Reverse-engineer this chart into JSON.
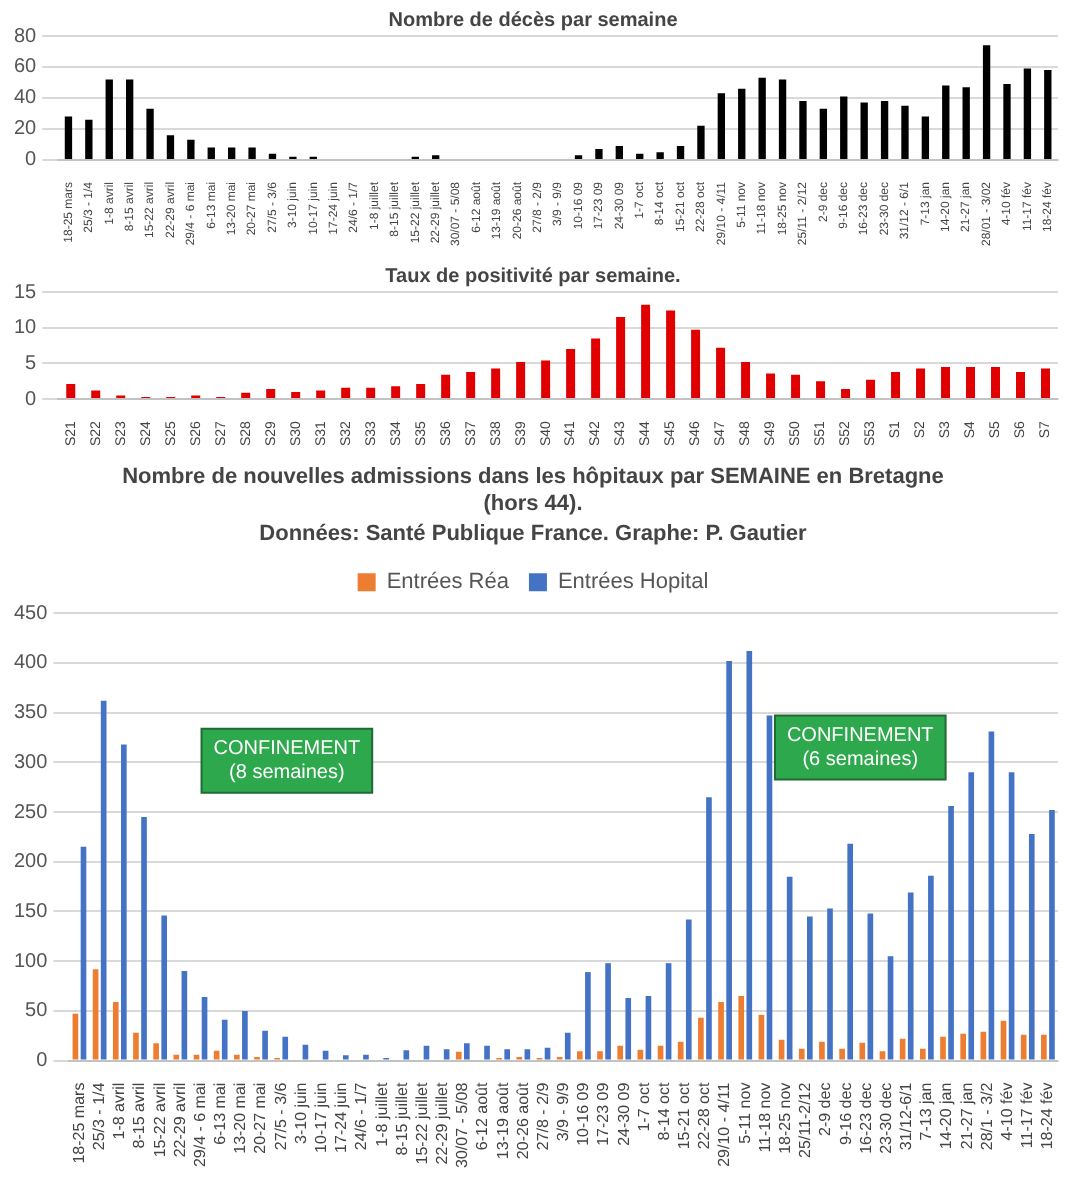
{
  "chart_data": [
    {
      "type": "bar",
      "title": "Nombre de décès par semaine",
      "categories": [
        "18-25 mars",
        "25/3 - 1/4",
        "1-8 avril",
        "8-15 avril",
        "15-22 avril",
        "22-29 avril",
        "29/4 - 6 mai",
        "6-13 mai",
        "13-20 mai",
        "20-27 mai",
        "27/5 - 3/6",
        "3-10 juin",
        "10-17 juin",
        "17-24 juin",
        "24/6 - 1/7",
        "1-8 juillet",
        "8-15 juillet",
        "15-22 juillet",
        "22-29 juillet",
        "30/07 - 5/08",
        "6-12 août",
        "13-19 août",
        "20-26 août",
        "27/8 - 2/9",
        "3/9 - 9/9",
        "10-16 09",
        "17-23 09",
        "24-30 09",
        "1-7 oct",
        "8-14 oct",
        "15-21 oct",
        "22-28 oct",
        "29/10 - 4/11",
        "5-11 nov",
        "11-18 nov",
        "18-25 nov",
        "25/11 - 2/12",
        "2-9 dec",
        "9-16 dec",
        "16-23 dec",
        "23-30 dec",
        "31/12 - 6/1",
        "7-13 jan",
        "14-20 jan",
        "21-27 jan",
        "28/01 - 3/02",
        "4-10 fév",
        "11-17 fév",
        "18-24 fév"
      ],
      "values": [
        28,
        26,
        52,
        52,
        33,
        16,
        13,
        8,
        8,
        8,
        4,
        2,
        2,
        0,
        0,
        0,
        0,
        2,
        3,
        0,
        0,
        0,
        0,
        0,
        0,
        3,
        7,
        9,
        4,
        5,
        9,
        22,
        43,
        46,
        53,
        52,
        38,
        33,
        41,
        37,
        38,
        35,
        28,
        48,
        47,
        74,
        49,
        59,
        58
      ],
      "color": "#000000",
      "ylim": [
        0,
        80
      ],
      "yticks": [
        0,
        20,
        40,
        60,
        80
      ],
      "grid": "y"
    },
    {
      "type": "bar",
      "title": "Taux de positivité par semaine.",
      "categories": [
        "S21",
        "S22",
        "S23",
        "S24",
        "S25",
        "S26",
        "S27",
        "S28",
        "S29",
        "S30",
        "S31",
        "S32",
        "S33",
        "S34",
        "S35",
        "S36",
        "S37",
        "S38",
        "S39",
        "S40",
        "S41",
        "S42",
        "S43",
        "S44",
        "S45",
        "S46",
        "S47",
        "S48",
        "S49",
        "S50",
        "S51",
        "S52",
        "S53",
        "S1",
        "S2",
        "S3",
        "S4",
        "S5",
        "S6",
        "S7"
      ],
      "values": [
        2.1,
        1.2,
        0.5,
        0.3,
        0.3,
        0.5,
        0.3,
        0.9,
        1.4,
        1.0,
        1.2,
        1.6,
        1.6,
        1.8,
        2.1,
        3.4,
        3.8,
        4.3,
        5.2,
        5.4,
        7.0,
        8.5,
        11.5,
        13.2,
        12.4,
        9.7,
        7.2,
        5.2,
        3.6,
        3.4,
        2.5,
        1.4,
        2.7,
        3.8,
        4.3,
        4.5,
        4.5,
        4.5,
        3.8,
        4.3
      ],
      "color": "#e00000",
      "ylim": [
        0,
        15
      ],
      "yticks": [
        0,
        5,
        10,
        15
      ],
      "grid": "y"
    },
    {
      "type": "bar",
      "title": "Nombre de nouvelles admissions dans les hôpitaux par SEMAINE en Bretagne (hors 44).",
      "subtitle": "Données: Santé Publique France. Graphe: P. Gautier",
      "categories": [
        "18-25 mars",
        "25/3 - 1/4",
        "1-8 avril",
        "8-15 avril",
        "15-22 avril",
        "22-29 avril",
        "29/4 - 6 mai",
        "6-13 mai",
        "13-20 mai",
        "20-27 mai",
        "27/5 - 3/6",
        "3-10 juin",
        "10-17 juin",
        "17-24 juin",
        "24/6 - 1/7",
        "1-8 juillet",
        "8-15 juillet",
        "15-22 juillet",
        "22-29 juillet",
        "30/07 - 5/08",
        "6-12 août",
        "13-19 août",
        "20-26 août",
        "27/8 - 2/9",
        "3/9 - 9/9",
        "10-16 09",
        "17-23 09",
        "24-30 09",
        "1-7 oct",
        "8-14 oct",
        "15-21 oct",
        "22-28 oct",
        "29/10 - 4/11",
        "5-11 nov",
        "11-18 nov",
        "18-25 nov",
        "25/11-2/12",
        "2-9 dec",
        "9-16 dec",
        "16-23 dec",
        "23-30 dec",
        "31/12-6/1",
        "7-13 jan",
        "14-20 jan",
        "21-27 jan",
        "28/1 - 3/2",
        "4-10 fév",
        "11-17 fév",
        "18-24 fév"
      ],
      "series": [
        {
          "name": "Entrées Réa",
          "color": "#ed7d31",
          "values": [
            47,
            92,
            59,
            28,
            17.5,
            6,
            6,
            10,
            6,
            3.5,
            2.5,
            0,
            1,
            0,
            0,
            0,
            1,
            1,
            0,
            9,
            1,
            2.5,
            3.5,
            2.5,
            3.5,
            9.5,
            9.5,
            15,
            11,
            15,
            19,
            43,
            59,
            65,
            46,
            21,
            12,
            19,
            12,
            18,
            9.5,
            22,
            12,
            24,
            27,
            29,
            40,
            26,
            26
          ]
        },
        {
          "name": "Entrées Hopital",
          "color": "#4472c4",
          "values": [
            215,
            362,
            318,
            245,
            146,
            90,
            64,
            41,
            50,
            30,
            24,
            16,
            10,
            5.5,
            6,
            2.5,
            10.5,
            15,
            11.5,
            17.5,
            15,
            11.5,
            11.5,
            13,
            28,
            89,
            98,
            63,
            65,
            98,
            142,
            265,
            402,
            412,
            347,
            185,
            145,
            153,
            218,
            148,
            105,
            169,
            186,
            256,
            290,
            331,
            290,
            228,
            252
          ]
        }
      ],
      "ylim": [
        0,
        450
      ],
      "yticks": [
        0,
        50,
        100,
        150,
        200,
        250,
        300,
        350,
        400,
        450
      ],
      "grid": "y",
      "legend": "top",
      "annotations": [
        "CONFINEMENT\n(8 semaines)",
        "CONFINEMENT\n(6 semaines)"
      ]
    }
  ]
}
